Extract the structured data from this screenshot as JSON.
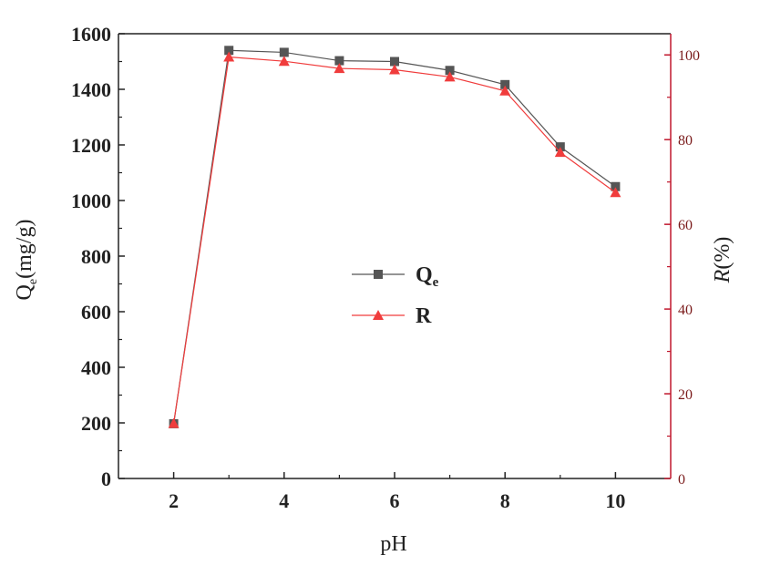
{
  "chart_data": {
    "type": "line",
    "x": [
      2,
      3,
      4,
      5,
      6,
      7,
      8,
      9,
      10
    ],
    "xlabel": "pH",
    "ylabel_left_main": "Q",
    "ylabel_left_sub": "e",
    "ylabel_left_unit": "(mg/g)",
    "ylabel_right_main": "R",
    "ylabel_right_unit": "(%)",
    "xlim": [
      1,
      11
    ],
    "ylim_left": [
      0,
      1600
    ],
    "ylim_right": [
      0,
      105
    ],
    "x_ticks": [
      2,
      4,
      6,
      8,
      10
    ],
    "y_left_ticks": [
      0,
      200,
      400,
      600,
      800,
      1000,
      1200,
      1400,
      1600
    ],
    "y_right_ticks": [
      0,
      20,
      40,
      60,
      80,
      100
    ],
    "grid": false,
    "legend_position": "center",
    "series": [
      {
        "name": "Q",
        "name_sub": "e",
        "axis": "left",
        "marker": "square",
        "color": "#555555",
        "values": [
          197,
          1540,
          1533,
          1503,
          1500,
          1468,
          1417,
          1193,
          1050
        ]
      },
      {
        "name": "R",
        "axis": "right",
        "marker": "triangle",
        "color": "#f03c3c",
        "values": [
          13,
          99.5,
          98.5,
          96.8,
          96.5,
          94.8,
          91.5,
          77.0,
          67.5
        ]
      }
    ],
    "colors": {
      "axis_left": "#222222",
      "axis_right": "#c0182e",
      "right_tick_text": "#7a1a1a"
    }
  }
}
